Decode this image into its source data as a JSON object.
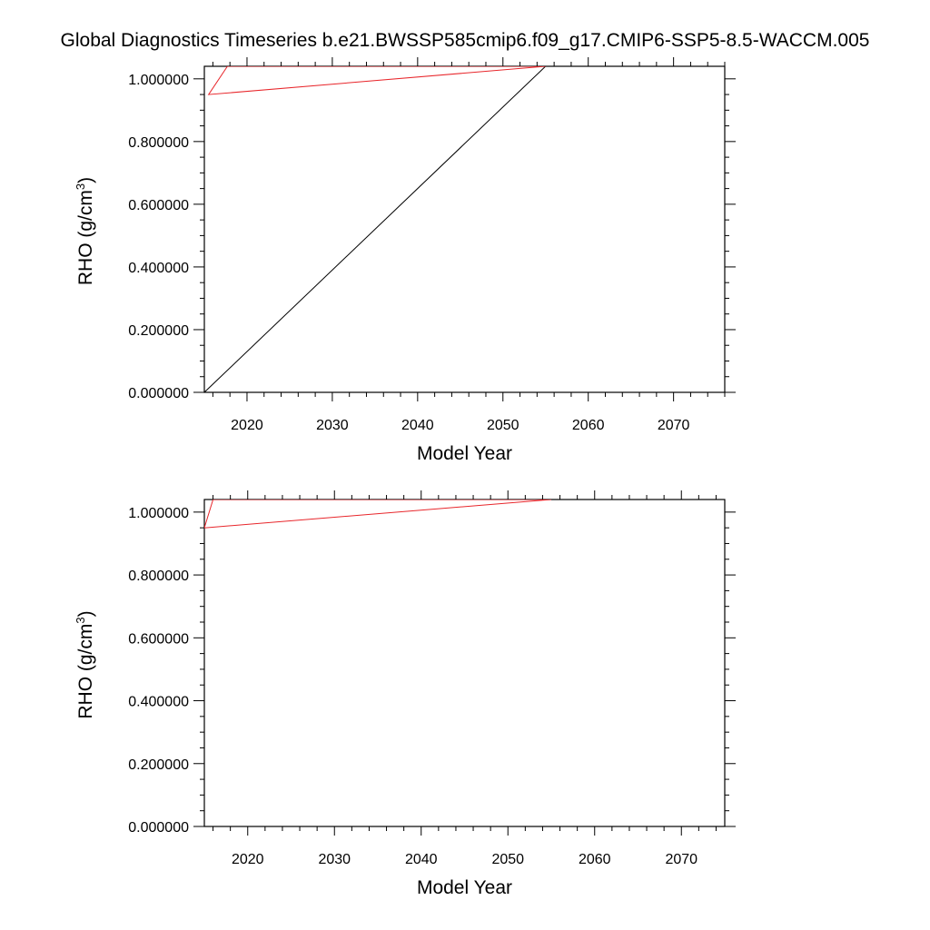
{
  "figure": {
    "title": "Global Diagnostics Timeseries b.e21.BWSSP585cmip6.f09_g17.CMIP6-SSP5-8.5-WACCM.005"
  },
  "chart_data": [
    {
      "type": "line",
      "xlabel": "Model Year",
      "ylabel": "RHO (g/cm",
      "ylabel_sup": "3",
      "ylabel_close": ")",
      "xlim": [
        2015,
        2076
      ],
      "ylim": [
        0.0,
        1.04
      ],
      "xticks": [
        2020,
        2030,
        2040,
        2050,
        2060,
        2070
      ],
      "xtick_labels": [
        "2020",
        "2030",
        "2040",
        "2050",
        "2060",
        "2070"
      ],
      "yticks": [
        0.0,
        0.2,
        0.4,
        0.6,
        0.8,
        1.0
      ],
      "ytick_labels": [
        "0.000000",
        "0.200000",
        "0.400000",
        "0.600000",
        "0.800000",
        "1.000000"
      ],
      "grid": false,
      "series": [
        {
          "color": "#000000",
          "x": [
            2015,
            2055
          ],
          "y": [
            0.0,
            1.04
          ]
        },
        {
          "color": "#e8262b",
          "x": [
            2017.7,
            2015.5,
            2055,
            2017.7
          ],
          "y": [
            1.04,
            0.95,
            1.04,
            1.04
          ]
        }
      ]
    },
    {
      "type": "line",
      "xlabel": "Model Year",
      "ylabel": "RHO (g/cm",
      "ylabel_sup": "3",
      "ylabel_close": ")",
      "xlim": [
        2015,
        2075
      ],
      "ylim": [
        0.0,
        1.04
      ],
      "xticks": [
        2020,
        2030,
        2040,
        2050,
        2060,
        2070
      ],
      "xtick_labels": [
        "2020",
        "2030",
        "2040",
        "2050",
        "2060",
        "2070"
      ],
      "yticks": [
        0.0,
        0.2,
        0.4,
        0.6,
        0.8,
        1.0
      ],
      "ytick_labels": [
        "0.000000",
        "0.200000",
        "0.400000",
        "0.600000",
        "0.800000",
        "1.000000"
      ],
      "grid": false,
      "series": [
        {
          "color": "#e8262b",
          "x": [
            2015,
            2016,
            2055,
            2016
          ],
          "y": [
            0.95,
            1.04,
            1.04,
            1.04
          ]
        },
        {
          "color": "#e8262b",
          "x": [
            2015,
            2055
          ],
          "y": [
            0.95,
            1.04
          ]
        }
      ]
    }
  ]
}
